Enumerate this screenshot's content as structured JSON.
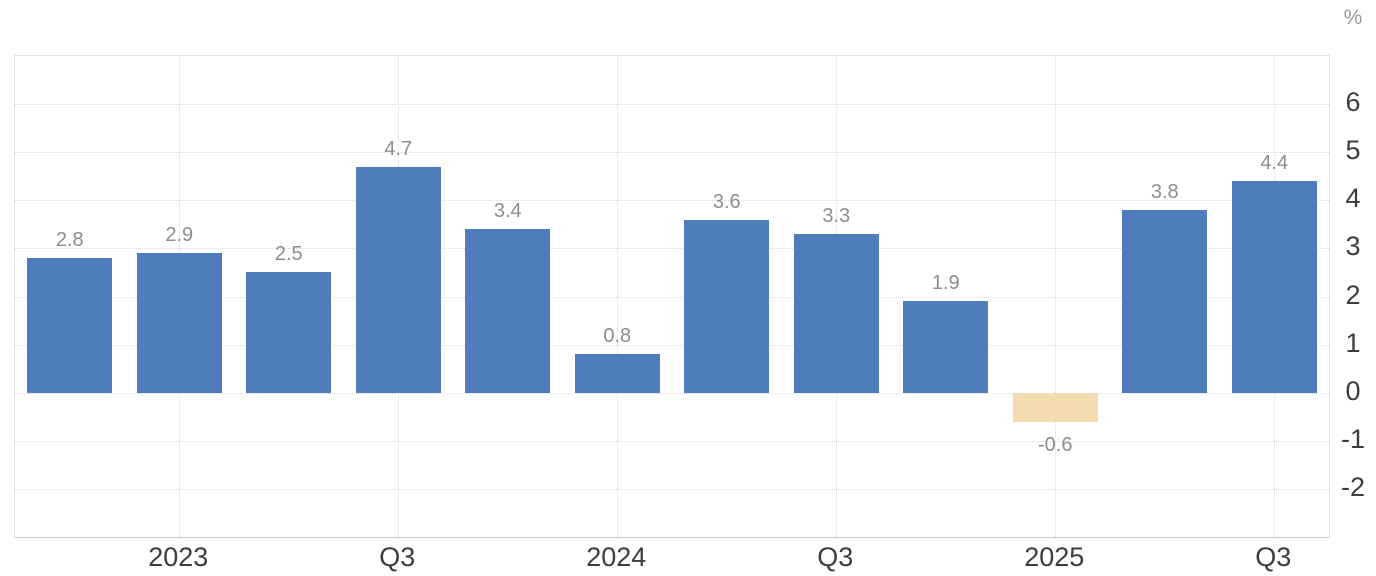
{
  "chart_data": {
    "type": "bar",
    "unit": "%",
    "values": [
      2.8,
      2.9,
      2.5,
      4.7,
      3.4,
      0.8,
      3.6,
      3.3,
      1.9,
      -0.6,
      3.8,
      4.4
    ],
    "bar_labels": [
      "2.8",
      "2.9",
      "2.5",
      "4.7",
      "3.4",
      "0.8",
      "3.6",
      "3.3",
      "1.9",
      "-0.6",
      "3.8",
      "4.4"
    ],
    "x_tick_labels": [
      "2023",
      "Q3",
      "2024",
      "Q3",
      "2025",
      "Q3"
    ],
    "x_tick_slots": [
      1,
      3,
      5,
      7,
      9,
      11
    ],
    "y_ticks": [
      6,
      5,
      4,
      3,
      2,
      1,
      0,
      -1,
      -2
    ],
    "ylim": [
      -3,
      7
    ],
    "grid": true,
    "legend": "none",
    "title": "",
    "xlabel": "",
    "ylabel": "%",
    "colors": {
      "bar_positive": "#4f7cba",
      "bar_negative": "#f2dbae",
      "value_label": "#8d8d8d",
      "axis_label": "#3d3d3d",
      "unit_label": "#9a9a9a",
      "grid_line": "#d9d9d9",
      "plot_border": "#e4e4e4",
      "axis_line": "#c9c9c9"
    }
  }
}
